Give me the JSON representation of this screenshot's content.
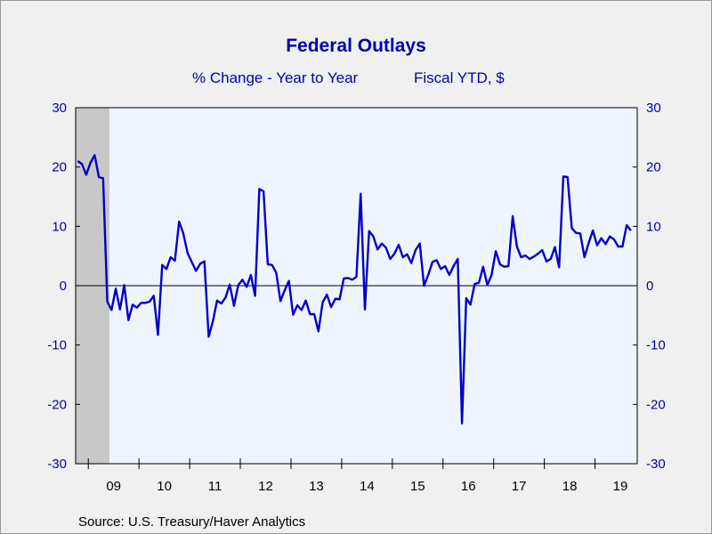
{
  "header": {
    "title": "Federal Outlays",
    "subtitle_left": "% Change - Year to Year",
    "subtitle_right": "Fiscal YTD, $"
  },
  "footer": {
    "source": "Source:  U.S. Treasury/Haver Analytics"
  },
  "colors": {
    "line": "#0000c8",
    "axis_text": "#0000b4",
    "plot_bg": "#eef5fe",
    "recession": "#c8c8c8"
  },
  "chart_data": {
    "type": "line",
    "title": "Federal Outlays",
    "subtitle": "% Change - Year to Year    Fiscal YTD, $",
    "xlabel": "",
    "ylabel": "",
    "ylim": [
      -30,
      30
    ],
    "yticks": [
      "30",
      "20",
      "10",
      "0",
      "-10",
      "-20",
      "-30"
    ],
    "xticks": [
      "09",
      "10",
      "11",
      "12",
      "13",
      "14",
      "15",
      "16",
      "17",
      "18",
      "19"
    ],
    "grid": false,
    "zero_line": true,
    "recession_shading": [
      [
        "2008-10",
        "2009-06"
      ]
    ],
    "series": [
      {
        "name": "",
        "start": "2008-10",
        "frequency": "monthly",
        "values": [
          21,
          20.5,
          18.7,
          20.7,
          22,
          18.3,
          18.1,
          -2.7,
          -4.1,
          -0.5,
          -4,
          0.1,
          -5.8,
          -3.2,
          -3.7,
          -2.9,
          -2.9,
          -2.7,
          -1.7,
          -8.3,
          3.5,
          2.8,
          4.8,
          4.2,
          10.8,
          8.8,
          5.5,
          4,
          2.5,
          3.7,
          4.1,
          -8.6,
          -6,
          -2.5,
          -3,
          -2,
          0.2,
          -3.4,
          0.1,
          1,
          -0.2,
          1.8,
          -1.7,
          16.3,
          15.9,
          3.6,
          3.5,
          2.2,
          -2.6,
          -0.8,
          0.8,
          -4.9,
          -3.3,
          -4.1,
          -2.5,
          -4.8,
          -4.8,
          -7.7,
          -2.8,
          -1.5,
          -3.6,
          -2.2,
          -2.3,
          1.2,
          1.3,
          1,
          1.5,
          15.5,
          -4,
          9.2,
          8.3,
          6.1,
          7.1,
          6.4,
          4.5,
          5.4,
          6.9,
          4.8,
          5.3,
          3.8,
          6,
          7.1,
          0,
          1.8,
          4,
          4.3,
          2.8,
          3.3,
          1.8,
          3.3,
          4.5,
          -23.2,
          -2.1,
          -3.2,
          0.3,
          0.5,
          3.2,
          0.1,
          1.8,
          5.8,
          3.6,
          3.2,
          3.3,
          11.7,
          6.6,
          4.8,
          5.1,
          4.5,
          4.9,
          5.4,
          6,
          4.1,
          4.5,
          6.5,
          3.1,
          18.4,
          18.3,
          9.7,
          8.9,
          8.8,
          4.8,
          7.2,
          9.3,
          6.8,
          8,
          7,
          8.3,
          7.8,
          6.6,
          6.6,
          10.2,
          9.3
        ]
      }
    ]
  }
}
